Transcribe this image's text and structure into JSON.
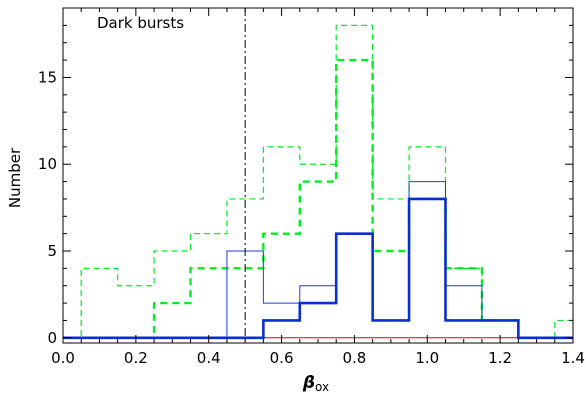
{
  "chart_data": {
    "type": "histogram",
    "xlabel": "β",
    "xlabel_subscript": "ox",
    "ylabel": "Number",
    "xlim": [
      0.0,
      1.4
    ],
    "ylim": [
      -0.3,
      19
    ],
    "xticks": [
      "0.0",
      "0.2",
      "0.4",
      "0.6",
      "0.8",
      "1.0",
      "1.2",
      "1.4"
    ],
    "xtick_values": [
      0.0,
      0.2,
      0.4,
      0.6,
      0.8,
      1.0,
      1.2,
      1.4
    ],
    "yticks": [
      "0",
      "5",
      "10",
      "15"
    ],
    "ytick_values": [
      0,
      5,
      10,
      15
    ],
    "bin_edges": [
      -0.05,
      0.05,
      0.15,
      0.25,
      0.35,
      0.45,
      0.55,
      0.65,
      0.75,
      0.85,
      0.95,
      1.05,
      1.15,
      1.25,
      1.35,
      1.45
    ],
    "annotation": "Dark bursts",
    "vline_x": 0.5,
    "series": [
      {
        "color": "#00ee22",
        "style": "thin-dashed",
        "values": [
          0,
          4,
          3,
          5,
          6,
          8,
          11,
          10,
          18,
          8,
          11,
          4,
          1,
          0,
          1
        ]
      },
      {
        "color": "#00ee22",
        "style": "thick-dashed",
        "values": [
          0,
          0,
          0,
          2,
          4,
          4,
          6,
          9,
          16,
          5,
          8,
          4,
          1,
          0,
          0
        ]
      },
      {
        "color": "#1a3fd6",
        "style": "thin-solid",
        "values": [
          0,
          0,
          0,
          0,
          0,
          5,
          2,
          3,
          6,
          1,
          9,
          3,
          1,
          0,
          0
        ]
      },
      {
        "color": "#0a2fcf",
        "style": "thick-solid",
        "values": [
          0,
          0,
          0,
          0,
          0,
          0,
          1,
          2,
          6,
          1,
          8,
          1,
          1,
          0,
          0
        ]
      },
      {
        "color": "#dd0000",
        "style": "thin-solid",
        "values": [
          0,
          0,
          0,
          0,
          0,
          0,
          0,
          0,
          0,
          0,
          0,
          0,
          0,
          0,
          0
        ]
      }
    ]
  }
}
